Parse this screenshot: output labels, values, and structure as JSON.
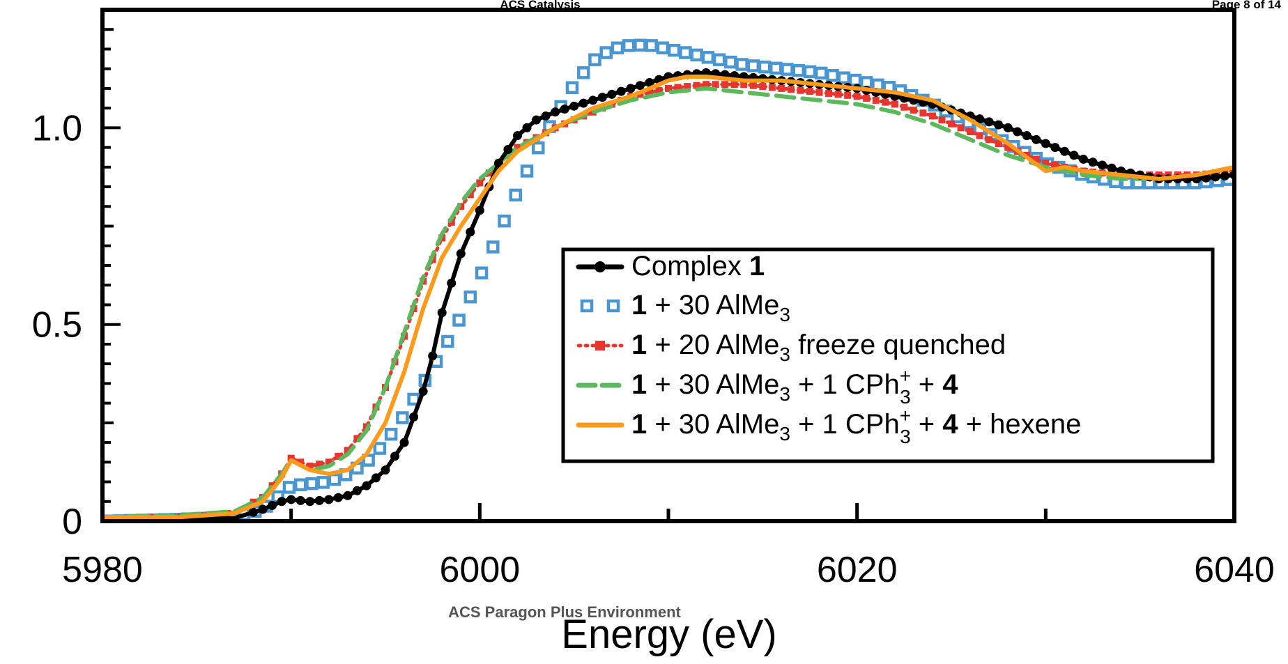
{
  "header": {
    "journal": "ACS Catalysis",
    "page": "Page 8 of 14"
  },
  "footer": "ACS Paragon Plus Environment",
  "chart_data": {
    "type": "line",
    "xlabel": "Energy (eV)",
    "ylabel": "",
    "xlim": [
      5980,
      6040
    ],
    "ylim": [
      0,
      1.3
    ],
    "x_ticks": [
      5980,
      6000,
      6020,
      6040
    ],
    "x_tick_labels": [
      "5980",
      "6000",
      "6020",
      "6040"
    ],
    "y_ticks": [
      0,
      0.5,
      1.0
    ],
    "y_tick_labels": [
      "0",
      "0.5",
      "1.0"
    ],
    "grid": false,
    "legend_position": "center-right",
    "series": [
      {
        "legend": {
          "pre": "Complex ",
          "bold": "1"
        },
        "color": "#000000",
        "style": "solid",
        "marker": "circle",
        "x": [
          5980,
          5984,
          5987,
          5988.5,
          5989.5,
          5990,
          5991,
          5992,
          5993,
          5994,
          5995,
          5996,
          5997,
          5997.5,
          5998,
          5999,
          6000,
          6001,
          6002,
          6003,
          6004,
          6006,
          6008,
          6010,
          6012,
          6014,
          6016,
          6018,
          6020,
          6022,
          6024,
          6026,
          6028,
          6030,
          6032,
          6034,
          6036,
          6038,
          6040
        ],
        "y": [
          0.005,
          0.005,
          0.008,
          0.03,
          0.05,
          0.055,
          0.05,
          0.055,
          0.065,
          0.09,
          0.13,
          0.2,
          0.33,
          0.42,
          0.53,
          0.68,
          0.79,
          0.91,
          0.98,
          1.02,
          1.04,
          1.07,
          1.1,
          1.13,
          1.14,
          1.13,
          1.12,
          1.11,
          1.1,
          1.08,
          1.06,
          1.03,
          1.0,
          0.96,
          0.92,
          0.89,
          0.87,
          0.87,
          0.88
        ]
      },
      {
        "legend": {
          "bold": "1",
          "post": " + 30 AlMe",
          "sub": "3"
        },
        "color": "#4a96d0",
        "style": "none",
        "marker": "square-open",
        "x": [
          5980,
          5984,
          5987,
          5988.5,
          5989.5,
          5990,
          5991,
          5992,
          5993,
          5994,
          5995,
          5996,
          5997,
          5998,
          5999,
          6000,
          6001,
          6002,
          6003,
          6004,
          6005,
          6006,
          6007,
          6008,
          6009,
          6010,
          6011,
          6012,
          6014,
          6016,
          6018,
          6020,
          6022,
          6024,
          6026,
          6028,
          6030,
          6032,
          6034,
          6036,
          6038,
          6040
        ],
        "y": [
          0.0,
          0.005,
          0.01,
          0.03,
          0.07,
          0.09,
          0.095,
          0.1,
          0.12,
          0.15,
          0.2,
          0.27,
          0.35,
          0.43,
          0.52,
          0.62,
          0.73,
          0.84,
          0.94,
          1.03,
          1.11,
          1.17,
          1.2,
          1.21,
          1.21,
          1.2,
          1.19,
          1.18,
          1.16,
          1.15,
          1.14,
          1.12,
          1.1,
          1.06,
          1.01,
          0.96,
          0.91,
          0.88,
          0.86,
          0.86,
          0.86,
          0.87
        ]
      },
      {
        "legend": {
          "bold": "1",
          "post": " + 20 AlMe",
          "sub": "3",
          "post2": " freeze quenched"
        },
        "color": "#e8352e",
        "style": "dotted",
        "marker": "square-filled",
        "x": [
          5980,
          5984,
          5987,
          5988.5,
          5989.5,
          5990,
          5991,
          5992,
          5993,
          5994,
          5995,
          5996,
          5997,
          5998,
          5999,
          6000,
          6001,
          6002,
          6004,
          6006,
          6008,
          6010,
          6012,
          6014,
          6016,
          6018,
          6020,
          6022,
          6024,
          6026,
          6028,
          6030,
          6032,
          6034,
          6036,
          6038,
          6040
        ],
        "y": [
          0.01,
          0.015,
          0.025,
          0.06,
          0.12,
          0.16,
          0.14,
          0.15,
          0.18,
          0.24,
          0.34,
          0.47,
          0.61,
          0.72,
          0.8,
          0.86,
          0.91,
          0.95,
          1.0,
          1.04,
          1.08,
          1.1,
          1.11,
          1.11,
          1.1,
          1.09,
          1.08,
          1.06,
          1.03,
          0.99,
          0.95,
          0.91,
          0.89,
          0.88,
          0.88,
          0.88,
          0.89
        ]
      },
      {
        "legend": {
          "bold": "1",
          "post": " + 30 AlMe",
          "sub": "3",
          "post2": " + 1 CPh",
          "supsub": [
            "+",
            "3"
          ],
          "post3": " + ",
          "bold2": "4"
        },
        "color": "#5cb85c",
        "style": "dashed",
        "marker": "none",
        "x": [
          5980,
          5984,
          5987,
          5988.5,
          5989.5,
          5990,
          5991,
          5992,
          5993,
          5994,
          5995,
          5996,
          5997,
          5998,
          5999,
          6000,
          6001,
          6002,
          6004,
          6006,
          6008,
          6010,
          6012,
          6014,
          6016,
          6018,
          6020,
          6022,
          6024,
          6026,
          6028,
          6030,
          6032,
          6034,
          6036,
          6038,
          6040
        ],
        "y": [
          0.01,
          0.015,
          0.025,
          0.06,
          0.12,
          0.155,
          0.13,
          0.14,
          0.17,
          0.23,
          0.34,
          0.48,
          0.62,
          0.73,
          0.81,
          0.87,
          0.91,
          0.95,
          1.0,
          1.04,
          1.07,
          1.09,
          1.1,
          1.09,
          1.08,
          1.07,
          1.06,
          1.04,
          1.01,
          0.97,
          0.93,
          0.9,
          0.88,
          0.87,
          0.87,
          0.88,
          0.9
        ]
      },
      {
        "legend": {
          "bold": "1",
          "post": " + 30 AlMe",
          "sub": "3",
          "post2": " + 1 CPh",
          "supsub": [
            "+",
            "3"
          ],
          "post3": " + ",
          "bold2": "4",
          "post4": " + hexene"
        },
        "color": "#ff9a1a",
        "style": "solid",
        "marker": "none",
        "x": [
          5980,
          5984,
          5987,
          5988.5,
          5989.5,
          5990,
          5991,
          5992,
          5993,
          5994,
          5995,
          5996,
          5997,
          5998,
          5999,
          6000,
          6001,
          6002,
          6004,
          6006,
          6008,
          6010,
          6011,
          6012,
          6014,
          6016,
          6018,
          6020,
          6022,
          6024,
          6026,
          6028,
          6030,
          6031,
          6032,
          6034,
          6036,
          6038,
          6040
        ],
        "y": [
          0.01,
          0.01,
          0.02,
          0.05,
          0.11,
          0.155,
          0.13,
          0.12,
          0.13,
          0.17,
          0.25,
          0.38,
          0.54,
          0.67,
          0.75,
          0.82,
          0.89,
          0.94,
          1.0,
          1.05,
          1.08,
          1.12,
          1.13,
          1.13,
          1.12,
          1.12,
          1.11,
          1.1,
          1.09,
          1.07,
          1.02,
          0.96,
          0.89,
          0.9,
          0.89,
          0.88,
          0.87,
          0.88,
          0.9
        ]
      }
    ]
  }
}
